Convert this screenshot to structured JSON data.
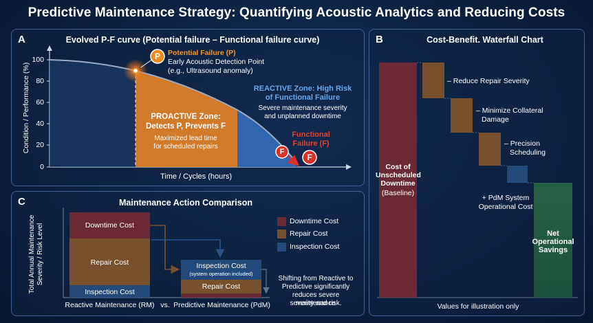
{
  "title": "Predictive Maintenance Strategy: Quantifying Acoustic Analytics and Reducing Costs",
  "colors": {
    "proactive": "#d07a2a",
    "reactive": "#2f66ad",
    "curve": "#9aa9c4",
    "downtime": "#d93127",
    "repair": "#f58a17",
    "inspection": "#3f7ac2",
    "savings": "#3a9a44",
    "marker_orange": "#f08a1a",
    "marker_red": "#d9302a"
  },
  "panel_a": {
    "letter": "A",
    "title": "Evolved P-F curve (Potential failure – Functional failure curve)",
    "ylabel": "Condition / Performance (%)",
    "xlabel": "Time / Cycles (hours)",
    "yticks": [
      "100",
      "80",
      "60",
      "40",
      "20",
      "0"
    ],
    "p_marker": "P",
    "f_marker": "F",
    "potential_failure_title": "Potential Failure (P)",
    "potential_failure_line1": "Early Acoustic Detection Point",
    "potential_failure_line2": "(e.g., Ultrasound anomaly)",
    "proactive_title1": "PROACTIVE Zone:",
    "proactive_title2": "Detects P, Prevents F",
    "proactive_desc1": "Maximized lead time",
    "proactive_desc2": "for scheduled repairs",
    "reactive_title1": "REACTIVE Zone: High Risk",
    "reactive_title2": "of Functional Failure",
    "reactive_desc1": "Severe maintenance severity",
    "reactive_desc2": "and unplanned downtime",
    "functional_failure1": "Functional",
    "functional_failure2": "Failure (F)"
  },
  "panel_b": {
    "letter": "B",
    "title": "Cost-Benefit. Waterfall Chart",
    "baseline_label1": "Cost of",
    "baseline_label2": "Unscheduled",
    "baseline_label3": "Downtime",
    "baseline_label4": "(Baseline)",
    "step1_label": "– Reduce Repair Severity",
    "step2_label1": "– Minimize Collateral",
    "step2_label2": "Damage",
    "step3_label1": "– Precision",
    "step3_label2": "Scheduling",
    "step4_label1": "+ PdM System",
    "step4_label2": "Operational Cost",
    "net_label1": "Net",
    "net_label2": "Operational",
    "net_label3": "Savings",
    "footnote": "Values for illustration only"
  },
  "panel_c": {
    "letter": "C",
    "title": "Maintenance Action Comparison",
    "ylabel1": "Total Annual Maintenance",
    "ylabel2": "Severity / Risk Level",
    "rm_downtime": "Downtime Cost",
    "rm_repair": "Repair Cost",
    "rm_inspection": "Inspection Cost",
    "pdm_inspection": "Inspection Cost",
    "pdm_inspection_sub": "(system operation included)",
    "pdm_repair": "Repair Cost",
    "x_rm": "Reactive Maintenance (RM)",
    "x_vs": "vs.",
    "x_pdm": "Predictive Maintenance (PdM)",
    "legend_downtime": "Downtime Cost",
    "legend_repair": "Repair Cost",
    "legend_inspection": "Inspection Cost",
    "note1": "Shifting from Reactive to",
    "note2": "Predictive significantly",
    "note3": "reduces severe maintenance",
    "note4": "severity and risk."
  }
}
